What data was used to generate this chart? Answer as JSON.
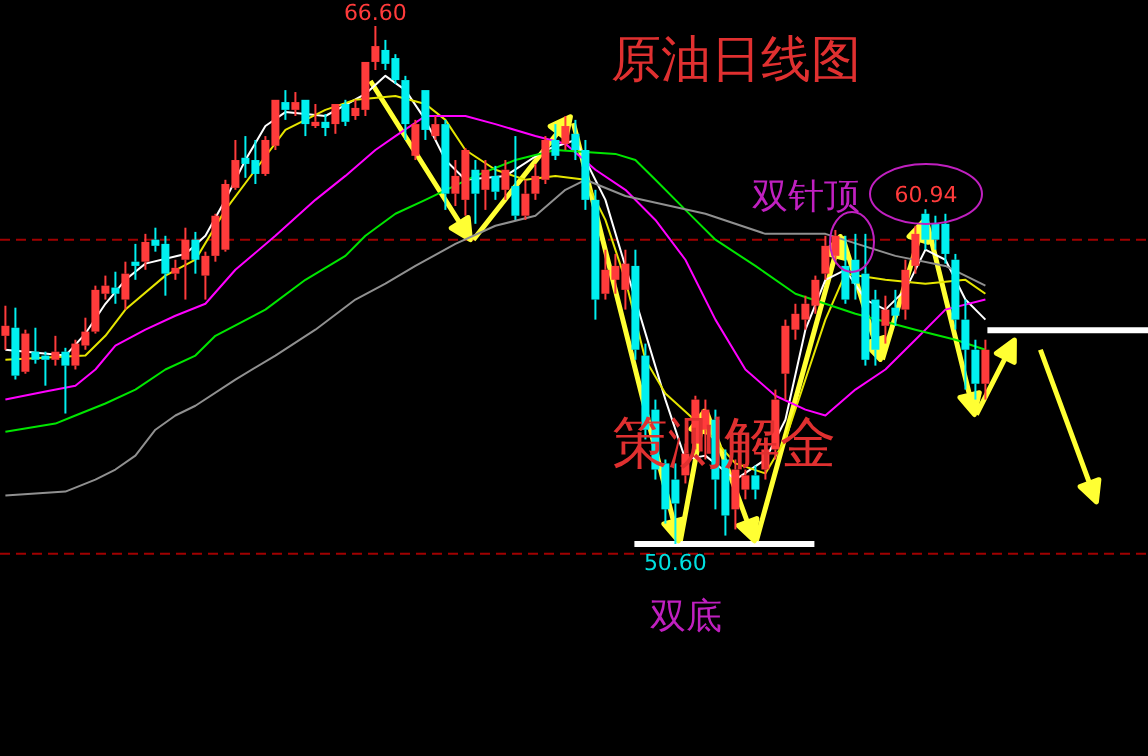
{
  "chart_data": {
    "type": "candlestick",
    "title": "原油日线图",
    "tick_labels": false,
    "categories": [
      null,
      null,
      null,
      null,
      null,
      null,
      null,
      null,
      null,
      null,
      null,
      null,
      null,
      null,
      null,
      null,
      null,
      null,
      null,
      null,
      null,
      null,
      null,
      null,
      null,
      null,
      null,
      null,
      null,
      null,
      null,
      null,
      null,
      null,
      null,
      null,
      null,
      null,
      null,
      null,
      null,
      null,
      null,
      null,
      null,
      null,
      null,
      null,
      null,
      null,
      null,
      null,
      null,
      null,
      null,
      null,
      null,
      null,
      null,
      null,
      null,
      null,
      null,
      null,
      null,
      null,
      null,
      null,
      null,
      null,
      null,
      null,
      null,
      null,
      null,
      null,
      null,
      null,
      null,
      null,
      null,
      null,
      null,
      null,
      null,
      null,
      null,
      null,
      null,
      null,
      null,
      null,
      null,
      null,
      null,
      null,
      null,
      null,
      null
    ],
    "ohlc": [
      [
        57.03,
        57.96,
        56.6,
        57.34
      ],
      [
        57.28,
        57.9,
        55.68,
        55.8
      ],
      [
        55.92,
        57.22,
        55.86,
        57.1
      ],
      [
        56.54,
        57.28,
        56.17,
        56.29
      ],
      [
        56.42,
        56.54,
        55.49,
        56.29
      ],
      [
        56.29,
        57.03,
        56.11,
        56.54
      ],
      [
        56.54,
        56.66,
        54.63,
        56.11
      ],
      [
        56.11,
        56.91,
        55.99,
        56.79
      ],
      [
        56.73,
        57.59,
        56.6,
        57.16
      ],
      [
        57.16,
        58.58,
        57.1,
        58.45
      ],
      [
        58.33,
        58.89,
        58.15,
        58.58
      ],
      [
        58.52,
        59.01,
        58.02,
        58.33
      ],
      [
        58.15,
        59.32,
        57.84,
        58.95
      ],
      [
        59.32,
        59.87,
        58.76,
        59.19
      ],
      [
        59.32,
        60.18,
        59.07,
        59.93
      ],
      [
        60.0,
        60.37,
        59.63,
        59.81
      ],
      [
        59.87,
        60.12,
        58.27,
        58.95
      ],
      [
        58.95,
        59.38,
        58.76,
        59.13
      ],
      [
        59.38,
        60.37,
        58.15,
        60.0
      ],
      [
        60.0,
        60.24,
        58.95,
        59.38
      ],
      [
        58.89,
        59.63,
        58.15,
        59.5
      ],
      [
        59.5,
        60.8,
        59.32,
        60.74
      ],
      [
        59.69,
        61.85,
        59.63,
        61.72
      ],
      [
        61.6,
        63.08,
        61.54,
        62.46
      ],
      [
        62.53,
        63.2,
        61.91,
        62.34
      ],
      [
        62.46,
        63.08,
        61.72,
        62.03
      ],
      [
        62.03,
        63.2,
        61.97,
        63.08
      ],
      [
        62.9,
        64.32,
        62.77,
        64.32
      ],
      [
        64.25,
        64.62,
        63.7,
        64.01
      ],
      [
        64.01,
        64.56,
        63.82,
        64.25
      ],
      [
        64.32,
        64.32,
        63.2,
        63.57
      ],
      [
        63.51,
        64.19,
        63.45,
        63.64
      ],
      [
        63.64,
        63.88,
        63.2,
        63.45
      ],
      [
        63.57,
        64.19,
        63.27,
        64.19
      ],
      [
        64.19,
        64.32,
        63.51,
        63.64
      ],
      [
        63.82,
        64.32,
        63.7,
        64.07
      ],
      [
        64.01,
        65.49,
        63.82,
        65.49
      ],
      [
        65.49,
        66.6,
        65.24,
        65.98
      ],
      [
        65.86,
        66.17,
        65.24,
        65.43
      ],
      [
        65.61,
        65.73,
        64.81,
        64.93
      ],
      [
        64.93,
        65.06,
        63.08,
        63.57
      ],
      [
        62.59,
        63.7,
        62.46,
        63.57
      ],
      [
        64.62,
        64.62,
        63.08,
        63.39
      ],
      [
        63.2,
        63.82,
        63.08,
        63.57
      ],
      [
        63.57,
        63.7,
        60.92,
        61.42
      ],
      [
        61.42,
        62.46,
        61.04,
        61.97
      ],
      [
        61.23,
        62.83,
        60.74,
        62.77
      ],
      [
        62.16,
        62.46,
        60.49,
        61.42
      ],
      [
        61.54,
        62.46,
        60.92,
        62.16
      ],
      [
        61.97,
        62.28,
        61.23,
        61.48
      ],
      [
        61.54,
        62.46,
        61.23,
        62.16
      ],
      [
        61.66,
        63.2,
        60.61,
        60.74
      ],
      [
        60.74,
        61.85,
        60.61,
        61.42
      ],
      [
        61.42,
        62.34,
        61.23,
        61.97
      ],
      [
        61.85,
        63.2,
        61.72,
        63.08
      ],
      [
        63.08,
        63.57,
        62.46,
        62.59
      ],
      [
        62.96,
        63.82,
        62.77,
        63.51
      ],
      [
        63.27,
        63.7,
        62.46,
        62.77
      ],
      [
        62.77,
        63.08,
        60.92,
        61.23
      ],
      [
        61.23,
        61.54,
        57.53,
        58.15
      ],
      [
        58.33,
        59.69,
        58.15,
        59.07
      ],
      [
        58.76,
        59.56,
        58.33,
        59.19
      ],
      [
        58.45,
        59.69,
        57.84,
        59.26
      ],
      [
        59.19,
        59.69,
        56.29,
        56.6
      ],
      [
        56.42,
        56.79,
        53.83,
        54.13
      ],
      [
        54.75,
        55.06,
        52.59,
        52.9
      ],
      [
        53.09,
        53.21,
        51.23,
        51.67
      ],
      [
        52.59,
        53.09,
        50.6,
        51.85
      ],
      [
        52.72,
        53.7,
        52.47,
        53.39
      ],
      [
        53.7,
        55.18,
        53.52,
        55.06
      ],
      [
        54.13,
        55.06,
        53.21,
        54.75
      ],
      [
        54.44,
        54.75,
        51.67,
        52.59
      ],
      [
        53.21,
        53.52,
        50.86,
        51.48
      ],
      [
        51.67,
        53.21,
        51.05,
        52.9
      ],
      [
        52.28,
        52.9,
        51.98,
        52.72
      ],
      [
        52.72,
        53.02,
        51.98,
        52.28
      ],
      [
        52.9,
        53.83,
        52.59,
        53.52
      ],
      [
        53.52,
        55.37,
        53.21,
        55.06
      ],
      [
        55.86,
        57.53,
        55.06,
        57.34
      ],
      [
        57.22,
        58.02,
        56.91,
        57.71
      ],
      [
        57.53,
        58.27,
        57.22,
        58.02
      ],
      [
        57.96,
        58.89,
        57.71,
        58.76
      ],
      [
        58.95,
        60.12,
        58.76,
        59.81
      ],
      [
        59.5,
        60.3,
        59.38,
        60.12
      ],
      [
        59.19,
        60.12,
        58.02,
        58.15
      ],
      [
        59.38,
        60.18,
        58.15,
        58.64
      ],
      [
        58.95,
        60.18,
        56.11,
        56.29
      ],
      [
        58.15,
        58.45,
        56.11,
        56.6
      ],
      [
        57.34,
        58.27,
        56.79,
        57.84
      ],
      [
        57.9,
        58.45,
        57.34,
        57.65
      ],
      [
        57.84,
        59.38,
        57.53,
        59.07
      ],
      [
        59.19,
        60.43,
        58.95,
        60.18
      ],
      [
        60.8,
        60.94,
        59.69,
        60.0
      ],
      [
        60.49,
        60.74,
        59.69,
        60.0
      ],
      [
        60.49,
        60.8,
        59.26,
        59.56
      ],
      [
        59.38,
        59.56,
        57.22,
        57.53
      ],
      [
        57.53,
        58.15,
        55.37,
        56.6
      ],
      [
        56.6,
        56.91,
        55.06,
        55.55
      ],
      [
        55.55,
        56.91,
        55.06,
        56.6
      ]
    ],
    "series": [
      {
        "type": "line",
        "color": "#ffffff",
        "values": [
          56.6,
          null,
          null,
          null,
          null,
          null,
          56.42,
          null,
          57.1,
          null,
          58.02,
          null,
          58.76,
          null,
          59.26,
          null,
          null,
          null,
          59.56,
          null,
          60.12,
          null,
          61.23,
          null,
          62.46,
          null,
          63.51,
          null,
          63.94,
          null,
          null,
          null,
          63.82,
          null,
          null,
          null,
          64.5,
          null,
          65.06,
          null,
          64.62,
          null,
          63.7,
          null,
          62.46,
          null,
          61.85,
          null,
          null,
          null,
          61.97,
          null,
          null,
          null,
          62.77,
          null,
          null,
          63.08,
          null,
          null,
          61.23,
          null,
          null,
          null,
          null,
          null,
          55.06,
          null,
          53.21,
          null,
          53.33,
          null,
          null,
          52.59,
          null,
          null,
          53.21,
          null,
          54.44,
          null,
          57.22,
          null,
          58.76,
          null,
          59.07,
          null,
          58.15,
          null,
          57.84,
          null,
          58.45,
          null,
          59.69,
          null,
          59.38,
          null,
          58.15,
          null,
          57.53
        ]
      },
      {
        "type": "line",
        "color": "#e6e600",
        "values": [
          56.29,
          null,
          null,
          null,
          null,
          null,
          null,
          null,
          56.42,
          null,
          57.03,
          null,
          57.84,
          null,
          null,
          null,
          58.89,
          null,
          null,
          59.38,
          null,
          null,
          60.92,
          null,
          null,
          62.16,
          null,
          null,
          63.39,
          null,
          null,
          null,
          64.01,
          null,
          null,
          64.32,
          null,
          null,
          null,
          64.44,
          null,
          null,
          64.19,
          null,
          63.7,
          null,
          62.77,
          null,
          null,
          62.16,
          null,
          null,
          61.85,
          null,
          null,
          61.97,
          null,
          null,
          61.85,
          null,
          60.61,
          null,
          58.76,
          null,
          56.29,
          null,
          55.25,
          null,
          null,
          null,
          54.13,
          null,
          null,
          53.09,
          null,
          null,
          52.78,
          null,
          53.83,
          null,
          55.68,
          null,
          57.53,
          null,
          58.95,
          null,
          null,
          null,
          58.76,
          null,
          null,
          null,
          58.64,
          null,
          null,
          null,
          58.76,
          null,
          58.33
        ]
      },
      {
        "type": "line",
        "color": "#ff00ff",
        "values": [
          55.06,
          null,
          null,
          null,
          55.31,
          null,
          null,
          55.49,
          null,
          55.99,
          null,
          56.73,
          null,
          null,
          57.22,
          null,
          null,
          57.65,
          null,
          null,
          58.02,
          null,
          null,
          59.07,
          null,
          null,
          null,
          60.12,
          null,
          null,
          null,
          61.23,
          null,
          null,
          61.97,
          null,
          null,
          62.77,
          null,
          63.2,
          null,
          null,
          63.82,
          null,
          null,
          null,
          63.82,
          null,
          null,
          63.57,
          null,
          null,
          null,
          63.2,
          null,
          null,
          62.96,
          null,
          null,
          62.16,
          null,
          null,
          61.54,
          null,
          null,
          60.61,
          null,
          null,
          59.38,
          null,
          null,
          57.53,
          null,
          null,
          55.99,
          null,
          null,
          55.18,
          null,
          null,
          54.75,
          null,
          54.57,
          null,
          null,
          55.37,
          null,
          null,
          55.99,
          null,
          null,
          56.91,
          null,
          null,
          57.84,
          null,
          null,
          null,
          58.15
        ]
      },
      {
        "type": "line",
        "color": "#00e600",
        "values": [
          54.07,
          null,
          null,
          null,
          null,
          54.32,
          null,
          54.57,
          null,
          null,
          54.94,
          null,
          null,
          55.37,
          null,
          null,
          55.99,
          null,
          null,
          56.42,
          null,
          57.03,
          null,
          null,
          null,
          null,
          57.84,
          null,
          null,
          null,
          58.76,
          null,
          null,
          null,
          59.5,
          null,
          60.12,
          null,
          null,
          60.8,
          null,
          null,
          61.23,
          null,
          null,
          null,
          null,
          61.97,
          null,
          null,
          null,
          62.46,
          null,
          null,
          null,
          62.77,
          null,
          null,
          62.71,
          null,
          null,
          62.65,
          null,
          62.46,
          null,
          61.85,
          null,
          null,
          60.92,
          null,
          null,
          60.0,
          null,
          null,
          null,
          59.19,
          null,
          null,
          null,
          58.33,
          null,
          null,
          null,
          null,
          null,
          57.71,
          null,
          null,
          null,
          null,
          null,
          57.22,
          null,
          null,
          null,
          56.91,
          null,
          null,
          56.6
        ]
      },
      {
        "type": "line",
        "color": "#909090",
        "values": [
          52.1,
          null,
          null,
          null,
          null,
          null,
          52.22,
          null,
          null,
          52.59,
          null,
          52.9,
          null,
          53.33,
          null,
          54.13,
          null,
          54.57,
          null,
          54.87,
          null,
          null,
          null,
          55.68,
          null,
          null,
          null,
          56.42,
          null,
          null,
          null,
          57.22,
          null,
          null,
          null,
          58.15,
          null,
          null,
          58.64,
          null,
          null,
          59.19,
          null,
          null,
          null,
          59.87,
          null,
          null,
          null,
          60.43,
          null,
          null,
          null,
          60.74,
          null,
          null,
          61.54,
          null,
          61.85,
          null,
          null,
          null,
          61.35,
          null,
          null,
          null,
          null,
          null,
          null,
          null,
          60.8,
          null,
          null,
          null,
          null,
          null,
          60.18,
          null,
          null,
          null,
          null,
          null,
          60.18,
          null,
          null,
          null,
          null,
          null,
          null,
          59.5,
          null,
          null,
          null,
          null,
          59.19,
          null,
          null,
          null,
          58.58
        ]
      }
    ],
    "ref_lines": [
      {
        "axis": "y",
        "value": 60.0,
        "color": "#a00000",
        "line_style": "dashed"
      },
      {
        "axis": "y",
        "value": 50.3,
        "color": "#a00000",
        "line_style": "dashed"
      }
    ],
    "annotations": [
      {
        "text": "66.60",
        "y": 66.6
      },
      {
        "text": "60.94",
        "y": 60.94
      },
      {
        "text": "50.60",
        "y": 50.6
      },
      "双针顶",
      "策测解金",
      "双底"
    ]
  }
}
